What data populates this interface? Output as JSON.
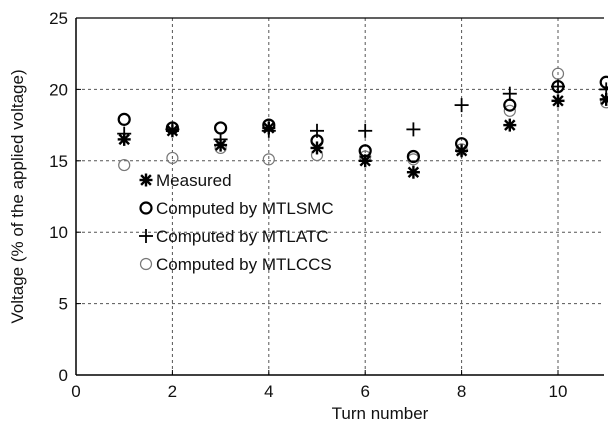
{
  "chart_data": {
    "type": "scatter",
    "xlabel": "Turn number",
    "ylabel": "Voltage (% of the applied voltage)",
    "xlim": [
      0,
      11
    ],
    "ylim": [
      0,
      25
    ],
    "xticks": [
      0,
      2,
      4,
      6,
      8,
      10
    ],
    "yticks": [
      0,
      5,
      10,
      15,
      20,
      25
    ],
    "grid": true,
    "legend_position": "center-left",
    "series": [
      {
        "name": "Measured",
        "marker": "asterisk",
        "x": [
          1,
          2,
          3,
          4,
          5,
          6,
          7,
          8,
          9,
          10,
          11
        ],
        "y": [
          16.5,
          17.1,
          16.1,
          17.3,
          15.9,
          15.0,
          14.2,
          15.7,
          17.5,
          19.2,
          19.3
        ]
      },
      {
        "name": "Computed by MTLSMC",
        "marker": "circle-bold",
        "x": [
          1,
          2,
          3,
          4,
          5,
          6,
          7,
          8,
          9,
          10,
          11
        ],
        "y": [
          17.9,
          17.3,
          17.3,
          17.5,
          16.4,
          15.7,
          15.3,
          16.2,
          18.9,
          20.2,
          20.5
        ]
      },
      {
        "name": "Computed by MTLATC",
        "marker": "plus",
        "x": [
          1,
          2,
          3,
          4,
          5,
          6,
          7,
          8,
          9,
          10,
          11
        ],
        "y": [
          16.9,
          17.2,
          16.5,
          17.1,
          17.1,
          17.1,
          17.2,
          18.9,
          19.7,
          20.2,
          20.0
        ]
      },
      {
        "name": "Computed by MTLCCS",
        "marker": "circle-thin",
        "x": [
          1,
          2,
          3,
          4,
          5,
          6,
          7,
          8,
          9,
          10,
          11
        ],
        "y": [
          14.7,
          15.2,
          15.9,
          15.1,
          15.4,
          15.3,
          15.1,
          15.8,
          18.5,
          21.1,
          19.1
        ]
      }
    ]
  }
}
